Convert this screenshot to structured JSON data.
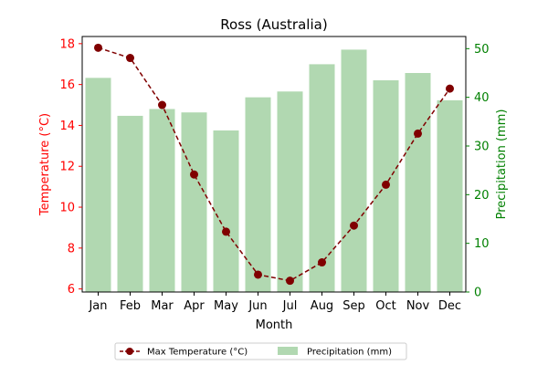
{
  "chart_data": {
    "type": "bar+line",
    "title": "Ross (Australia)",
    "xlabel": "Month",
    "categories": [
      "Jan",
      "Feb",
      "Mar",
      "Apr",
      "May",
      "Jun",
      "Jul",
      "Aug",
      "Sep",
      "Oct",
      "Nov",
      "Dec"
    ],
    "left_axis": {
      "label": "Temperature (°C)",
      "color": "#ff0000",
      "ylim": [
        5.85,
        18.35
      ],
      "ticks": [
        "6",
        "8",
        "10",
        "12",
        "14",
        "16",
        "18"
      ]
    },
    "right_axis": {
      "label": "Precipitation (mm)",
      "color": "#008000",
      "ylim": [
        0,
        52.5
      ],
      "ticks": [
        "0",
        "10",
        "20",
        "30",
        "40",
        "50"
      ]
    },
    "series": [
      {
        "name": "Max Temperature (°C)",
        "type": "line",
        "axis": "left",
        "color": "#800000",
        "values": [
          17.8,
          17.3,
          15.0,
          11.6,
          8.8,
          6.7,
          6.4,
          7.3,
          9.1,
          11.1,
          13.6,
          15.8
        ]
      },
      {
        "name": "Precipitation (mm)",
        "type": "bar",
        "axis": "right",
        "color": "#b1d8b1",
        "values": [
          44.0,
          36.2,
          37.6,
          36.9,
          33.2,
          40.0,
          41.2,
          46.8,
          49.8,
          43.5,
          45.0,
          39.4
        ]
      }
    ],
    "grid": false,
    "legend_position": "bottom-center"
  }
}
